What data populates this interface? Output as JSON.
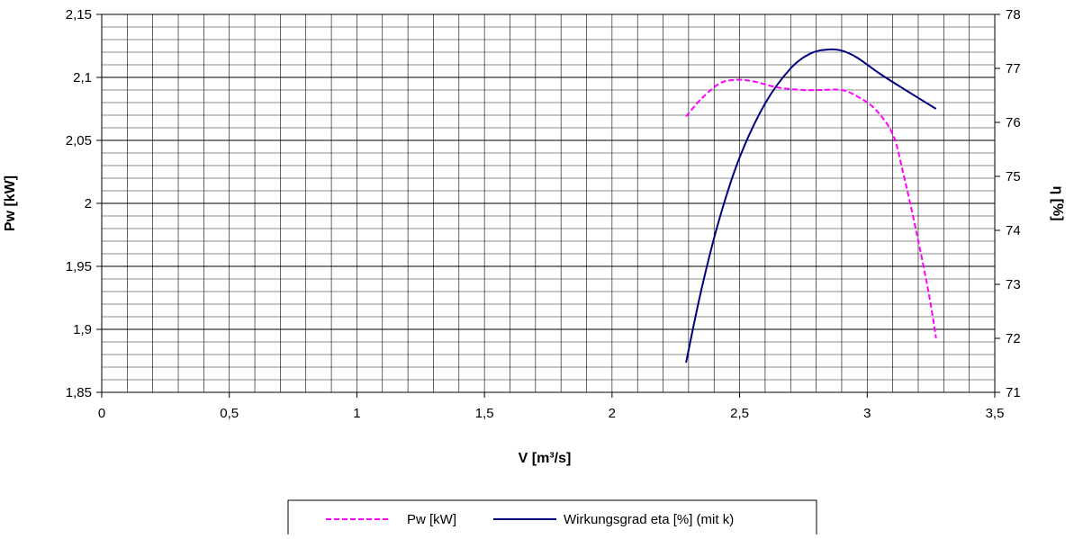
{
  "chart_data": {
    "type": "line",
    "title": "",
    "xlabel": "V [m³/s]",
    "ylabel": "Pw [kW]",
    "y2label": "η [%]",
    "xlim": [
      0,
      3.5
    ],
    "ylim": [
      1.85,
      2.15
    ],
    "y2lim": [
      71,
      78
    ],
    "x_ticks": [
      0,
      0.5,
      1,
      1.5,
      2,
      2.5,
      3,
      3.5
    ],
    "x_tick_labels": [
      "0",
      "0,5",
      "1",
      "1,5",
      "2",
      "2,5",
      "3",
      "3,5"
    ],
    "y_ticks": [
      1.85,
      1.9,
      1.95,
      2.0,
      2.05,
      2.1,
      2.15
    ],
    "y_tick_labels": [
      "1,85",
      "1,9",
      "1,95",
      "2",
      "2,05",
      "2,1",
      "2,15"
    ],
    "y2_ticks": [
      71,
      72,
      73,
      74,
      75,
      76,
      77,
      78
    ],
    "y2_tick_labels": [
      "71",
      "72",
      "73",
      "74",
      "75",
      "76",
      "77",
      "78"
    ],
    "grid": true,
    "legend_position": "bottom",
    "series": [
      {
        "name": "Pw [kW]",
        "axis": "left",
        "color": "#ff00ff",
        "dash": "dashed",
        "x": [
          2.29,
          2.35,
          2.42,
          2.48,
          2.55,
          2.65,
          2.75,
          2.82,
          2.9,
          2.96,
          3.03,
          3.1,
          3.14,
          3.19,
          3.24,
          3.27
        ],
        "y": [
          2.069,
          2.083,
          2.095,
          2.098,
          2.097,
          2.092,
          2.09,
          2.09,
          2.09,
          2.085,
          2.075,
          2.055,
          2.025,
          1.98,
          1.93,
          1.893
        ]
      },
      {
        "name": "Wirkungsgrad eta [%] (mit k)",
        "axis": "right",
        "color": "#000080",
        "dash": "solid",
        "x": [
          2.29,
          2.35,
          2.42,
          2.5,
          2.6,
          2.7,
          2.78,
          2.85,
          2.9,
          2.96,
          3.05,
          3.15,
          3.27
        ],
        "y": [
          71.55,
          72.9,
          74.2,
          75.35,
          76.35,
          77.0,
          77.28,
          77.35,
          77.33,
          77.2,
          76.9,
          76.6,
          76.25
        ]
      }
    ]
  }
}
